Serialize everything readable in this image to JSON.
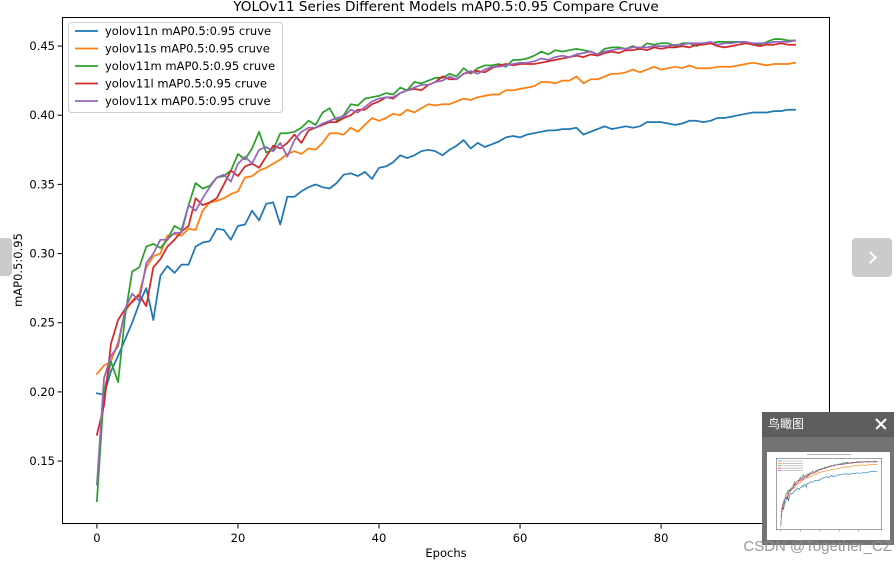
{
  "viewer": {
    "next_icon": "chevron-right-icon",
    "watermark": "CSDN @Together_CZ"
  },
  "minimap": {
    "title": "鸟瞰图",
    "close_icon": "close-icon"
  },
  "chart_data": {
    "type": "line",
    "title": "YOLOv11 Series Different Models mAP0.5:0.95 Compare Cruve",
    "xlabel": "Epochs",
    "ylabel": "mAP0.5:0.95",
    "xlim": [
      -4.95,
      103.95
    ],
    "ylim": [
      0.1045,
      0.471
    ],
    "xticks": [
      0,
      20,
      40,
      60,
      80
    ],
    "yticks": [
      0.15,
      0.2,
      0.25,
      0.3,
      0.35,
      0.4,
      0.45
    ],
    "ytick_labels": [
      "0.15",
      "0.20",
      "0.25",
      "0.30",
      "0.35",
      "0.40",
      "0.45"
    ],
    "grid": false,
    "legend": "upper-left",
    "x": [
      0,
      1,
      2,
      3,
      4,
      5,
      6,
      7,
      8,
      9,
      10,
      11,
      12,
      13,
      14,
      15,
      16,
      17,
      18,
      19,
      20,
      21,
      22,
      23,
      24,
      25,
      26,
      27,
      28,
      29,
      30,
      31,
      32,
      33,
      34,
      35,
      36,
      37,
      38,
      39,
      40,
      41,
      42,
      43,
      44,
      45,
      46,
      47,
      48,
      49,
      50,
      51,
      52,
      53,
      54,
      55,
      56,
      57,
      58,
      59,
      60,
      61,
      62,
      63,
      64,
      65,
      66,
      67,
      68,
      69,
      70,
      71,
      72,
      73,
      74,
      75,
      76,
      77,
      78,
      79,
      80,
      81,
      82,
      83,
      84,
      85,
      86,
      87,
      88,
      89,
      90,
      91,
      92,
      93,
      94,
      95,
      96,
      97,
      98,
      99
    ],
    "series": [
      {
        "name": "yolov11n mAP0.5:0.95 cruve",
        "color": "#1f77b4",
        "values": [
          0.199,
          0.198,
          0.215,
          0.226,
          0.238,
          0.25,
          0.264,
          0.275,
          0.252,
          0.284,
          0.291,
          0.286,
          0.292,
          0.292,
          0.305,
          0.308,
          0.309,
          0.318,
          0.317,
          0.31,
          0.32,
          0.321,
          0.331,
          0.324,
          0.336,
          0.337,
          0.321,
          0.341,
          0.341,
          0.345,
          0.348,
          0.35,
          0.348,
          0.347,
          0.351,
          0.357,
          0.358,
          0.356,
          0.359,
          0.354,
          0.362,
          0.363,
          0.366,
          0.371,
          0.369,
          0.371,
          0.374,
          0.375,
          0.374,
          0.371,
          0.375,
          0.378,
          0.382,
          0.376,
          0.38,
          0.377,
          0.379,
          0.381,
          0.384,
          0.385,
          0.384,
          0.386,
          0.387,
          0.388,
          0.389,
          0.389,
          0.39,
          0.39,
          0.391,
          0.386,
          0.388,
          0.39,
          0.392,
          0.39,
          0.391,
          0.392,
          0.391,
          0.392,
          0.395,
          0.395,
          0.395,
          0.394,
          0.393,
          0.394,
          0.396,
          0.396,
          0.395,
          0.396,
          0.398,
          0.398,
          0.399,
          0.4,
          0.401,
          0.402,
          0.402,
          0.402,
          0.403,
          0.403,
          0.404,
          0.404
        ]
      },
      {
        "name": "yolov11s mAP0.5:0.95 cruve",
        "color": "#ff7f0e",
        "values": [
          0.213,
          0.219,
          0.222,
          0.236,
          0.258,
          0.266,
          0.271,
          0.29,
          0.298,
          0.3,
          0.313,
          0.314,
          0.313,
          0.318,
          0.317,
          0.331,
          0.337,
          0.338,
          0.34,
          0.343,
          0.345,
          0.355,
          0.356,
          0.36,
          0.362,
          0.365,
          0.368,
          0.372,
          0.374,
          0.372,
          0.376,
          0.375,
          0.38,
          0.387,
          0.387,
          0.386,
          0.391,
          0.388,
          0.393,
          0.398,
          0.396,
          0.398,
          0.401,
          0.4,
          0.404,
          0.402,
          0.405,
          0.408,
          0.407,
          0.408,
          0.408,
          0.41,
          0.412,
          0.411,
          0.413,
          0.414,
          0.415,
          0.415,
          0.418,
          0.418,
          0.419,
          0.42,
          0.421,
          0.424,
          0.424,
          0.423,
          0.425,
          0.425,
          0.428,
          0.423,
          0.426,
          0.426,
          0.428,
          0.43,
          0.43,
          0.431,
          0.433,
          0.431,
          0.433,
          0.435,
          0.433,
          0.434,
          0.435,
          0.434,
          0.436,
          0.434,
          0.434,
          0.434,
          0.435,
          0.435,
          0.435,
          0.436,
          0.437,
          0.438,
          0.437,
          0.436,
          0.437,
          0.437,
          0.437,
          0.438
        ]
      },
      {
        "name": "yolov11m mAP0.5:0.95 cruve",
        "color": "#2ca02c",
        "values": [
          0.121,
          0.2,
          0.222,
          0.207,
          0.255,
          0.287,
          0.29,
          0.305,
          0.307,
          0.304,
          0.31,
          0.32,
          0.317,
          0.335,
          0.351,
          0.347,
          0.349,
          0.355,
          0.356,
          0.36,
          0.372,
          0.368,
          0.376,
          0.388,
          0.373,
          0.375,
          0.387,
          0.387,
          0.388,
          0.391,
          0.396,
          0.393,
          0.402,
          0.405,
          0.396,
          0.4,
          0.408,
          0.407,
          0.412,
          0.413,
          0.414,
          0.416,
          0.415,
          0.42,
          0.418,
          0.424,
          0.423,
          0.425,
          0.427,
          0.427,
          0.43,
          0.428,
          0.434,
          0.43,
          0.434,
          0.436,
          0.436,
          0.437,
          0.435,
          0.44,
          0.44,
          0.441,
          0.443,
          0.446,
          0.444,
          0.447,
          0.446,
          0.447,
          0.448,
          0.447,
          0.446,
          0.444,
          0.448,
          0.449,
          0.449,
          0.448,
          0.45,
          0.448,
          0.452,
          0.451,
          0.452,
          0.452,
          0.45,
          0.452,
          0.452,
          0.45,
          0.452,
          0.452,
          0.453,
          0.453,
          0.453,
          0.453,
          0.452,
          0.452,
          0.451,
          0.453,
          0.455,
          0.455,
          0.454,
          0.454
        ]
      },
      {
        "name": "yolov11l mAP0.5:0.95 cruve",
        "color": "#d62728",
        "values": [
          0.169,
          0.19,
          0.235,
          0.252,
          0.26,
          0.265,
          0.27,
          0.262,
          0.29,
          0.296,
          0.305,
          0.31,
          0.316,
          0.32,
          0.34,
          0.335,
          0.337,
          0.34,
          0.35,
          0.36,
          0.356,
          0.363,
          0.365,
          0.362,
          0.37,
          0.378,
          0.376,
          0.38,
          0.386,
          0.38,
          0.389,
          0.391,
          0.393,
          0.395,
          0.395,
          0.398,
          0.4,
          0.404,
          0.404,
          0.408,
          0.41,
          0.413,
          0.412,
          0.416,
          0.418,
          0.419,
          0.418,
          0.422,
          0.424,
          0.428,
          0.426,
          0.426,
          0.43,
          0.431,
          0.432,
          0.431,
          0.434,
          0.436,
          0.437,
          0.436,
          0.437,
          0.437,
          0.437,
          0.438,
          0.439,
          0.44,
          0.441,
          0.442,
          0.443,
          0.442,
          0.444,
          0.443,
          0.445,
          0.446,
          0.445,
          0.447,
          0.447,
          0.448,
          0.447,
          0.449,
          0.448,
          0.449,
          0.449,
          0.45,
          0.449,
          0.451,
          0.451,
          0.452,
          0.45,
          0.449,
          0.45,
          0.451,
          0.452,
          0.451,
          0.45,
          0.451,
          0.451,
          0.452,
          0.451,
          0.451
        ]
      },
      {
        "name": "yolov11x mAP0.5:0.95 cruve",
        "color": "#9467bd",
        "values": [
          0.133,
          0.21,
          0.226,
          0.233,
          0.26,
          0.271,
          0.266,
          0.293,
          0.3,
          0.31,
          0.31,
          0.315,
          0.315,
          0.335,
          0.331,
          0.34,
          0.348,
          0.355,
          0.357,
          0.352,
          0.365,
          0.37,
          0.365,
          0.375,
          0.377,
          0.374,
          0.38,
          0.37,
          0.382,
          0.388,
          0.391,
          0.391,
          0.394,
          0.396,
          0.398,
          0.399,
          0.404,
          0.402,
          0.406,
          0.41,
          0.412,
          0.413,
          0.413,
          0.416,
          0.418,
          0.42,
          0.422,
          0.422,
          0.424,
          0.425,
          0.428,
          0.426,
          0.43,
          0.432,
          0.43,
          0.433,
          0.435,
          0.435,
          0.436,
          0.437,
          0.438,
          0.438,
          0.439,
          0.441,
          0.44,
          0.442,
          0.443,
          0.442,
          0.444,
          0.445,
          0.446,
          0.444,
          0.446,
          0.447,
          0.448,
          0.448,
          0.449,
          0.449,
          0.449,
          0.45,
          0.45,
          0.45,
          0.451,
          0.451,
          0.452,
          0.452,
          0.452,
          0.453,
          0.451,
          0.452,
          0.452,
          0.453,
          0.453,
          0.452,
          0.452,
          0.452,
          0.453,
          0.453,
          0.453,
          0.454
        ]
      }
    ]
  }
}
